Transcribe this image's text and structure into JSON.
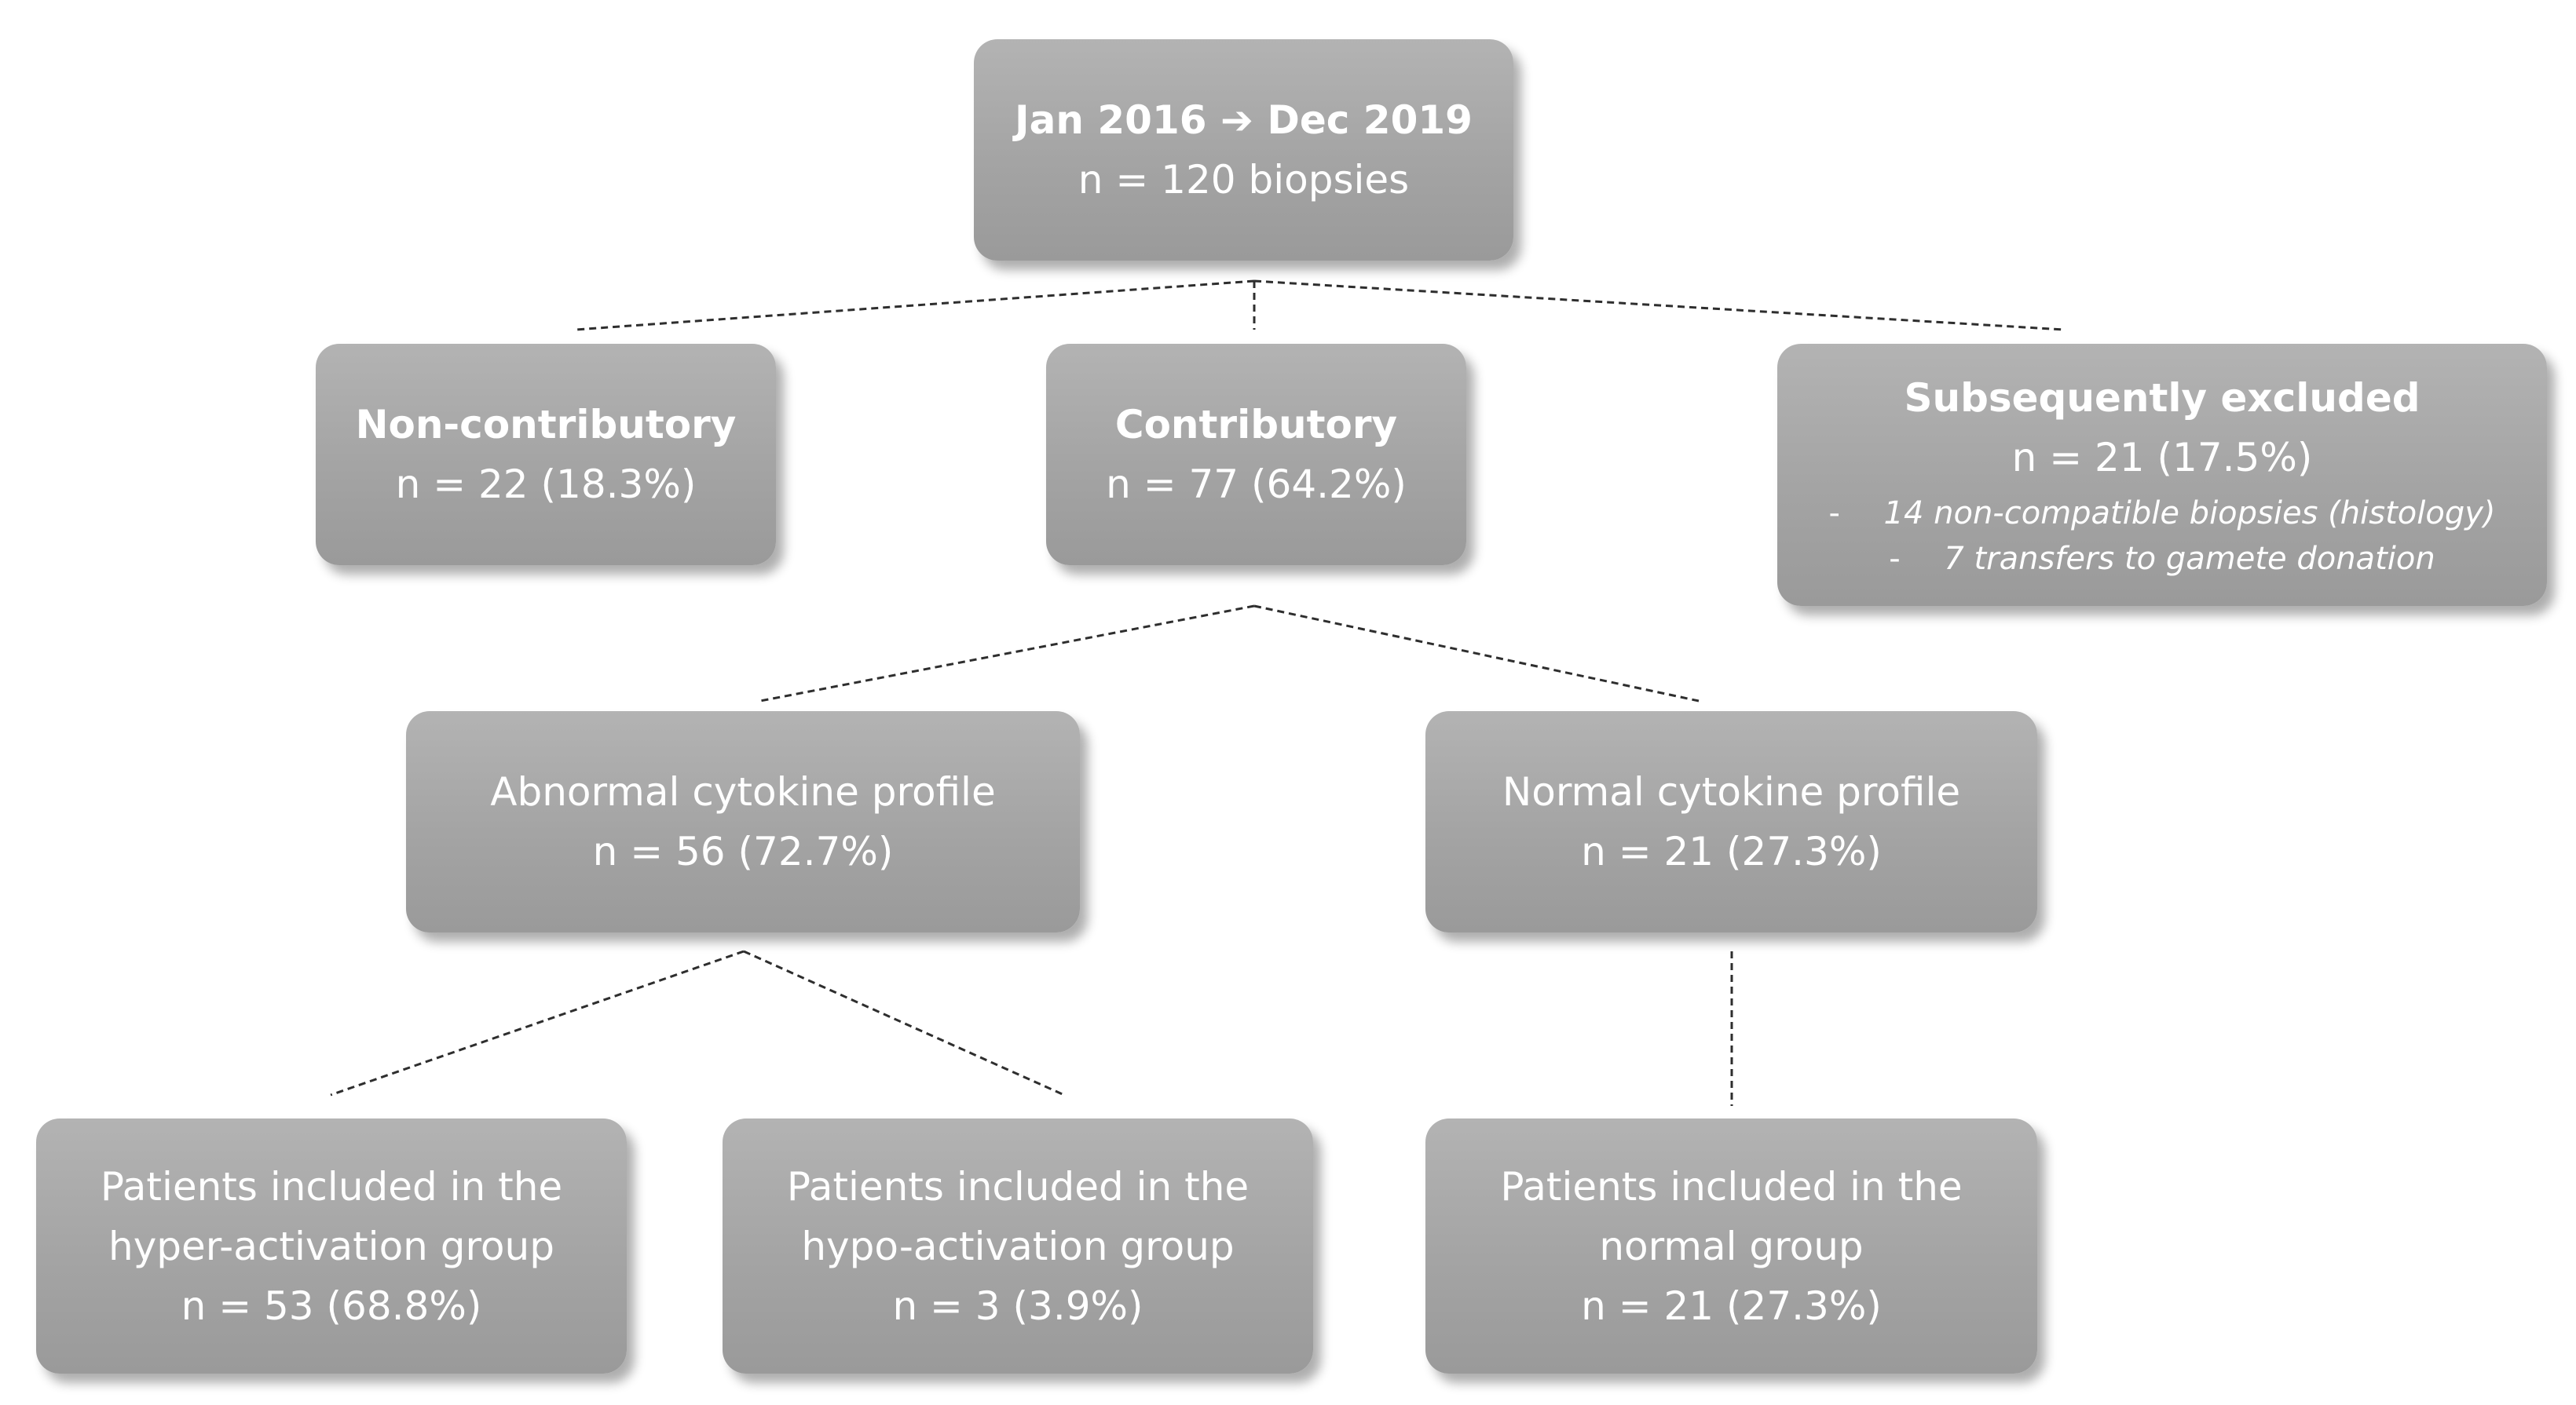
{
  "diagram": {
    "nodes": {
      "root": {
        "title_start": "Jan 2016",
        "title_arrow": "➔",
        "title_end": "Dec 2019",
        "count": "n = 120 biopsies"
      },
      "non_contributory": {
        "title": "Non-contributory",
        "count": "n = 22 (18.3%)"
      },
      "contributory": {
        "title": "Contributory",
        "count": "n = 77 (64.2%)"
      },
      "excluded": {
        "title": "Subsequently excluded",
        "count": "n = 21 (17.5%)",
        "reasons": [
          {
            "bullet": "-",
            "text": "14 non-compatible biopsies (histology)"
          },
          {
            "bullet": "-",
            "text": "7 transfers to gamete donation"
          }
        ]
      },
      "abnormal_profile": {
        "title": "Abnormal cytokine profile",
        "count": "n = 56 (72.7%)"
      },
      "normal_profile": {
        "title": "Normal cytokine profile",
        "count": "n = 21 (27.3%)"
      },
      "hyper_group": {
        "line1": "Patients included in the",
        "line2": "hyper-activation group",
        "count": "n = 53 (68.8%)"
      },
      "hypo_group": {
        "line1": "Patients included in the",
        "line2": "hypo-activation group",
        "count": "n = 3 (3.9%)"
      },
      "normal_group": {
        "line1": "Patients included in the",
        "line2": "normal group",
        "count": "n = 21 (27.3%)"
      }
    }
  }
}
